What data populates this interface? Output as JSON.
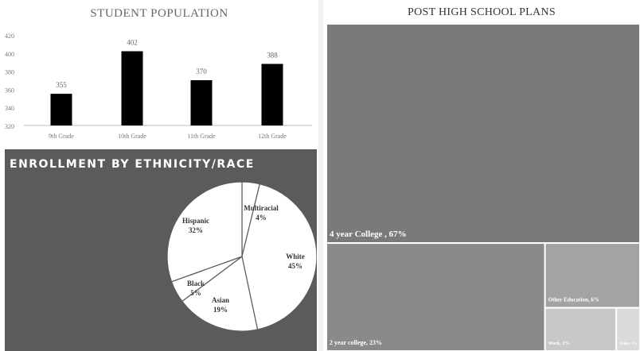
{
  "chart_data": [
    {
      "type": "bar",
      "title": "STUDENT POPULATION",
      "categories": [
        "9th Grade",
        "10th Grade",
        "11th Grade",
        "12th Grade"
      ],
      "values": [
        355,
        402,
        370,
        388
      ],
      "data_labels": [
        "355",
        "402",
        "370",
        "388"
      ],
      "y_tick_labels": [
        "320",
        "340",
        "360",
        "380",
        "400",
        "420"
      ],
      "ylim": [
        320,
        420
      ],
      "grid": false,
      "bar_color": "#000000"
    },
    {
      "type": "pie",
      "title": "ENROLLMENT BY ETHNICITY/RACE",
      "slices": [
        {
          "label": "Multiracial",
          "pct_label": "4%",
          "value": 4
        },
        {
          "label": "White",
          "pct_label": "45%",
          "value": 45
        },
        {
          "label": "Asian",
          "pct_label": "19%",
          "value": 19
        },
        {
          "label": "Black",
          "pct_label": "5%",
          "value": 5
        },
        {
          "label": "Hispanic",
          "pct_label": "32%",
          "value": 32
        }
      ],
      "background": "#5b5b5b",
      "slice_color": "#ffffff"
    },
    {
      "type": "treemap",
      "title": "POST HIGH SCHOOL PLANS",
      "items": [
        {
          "label": "4 year College , 67%",
          "value": 67,
          "color": "#7a7a7a"
        },
        {
          "label": "2 year college, 23%",
          "value": 23,
          "color": "#8a8a8a"
        },
        {
          "label": "Other Education, 6%",
          "value": 6,
          "color": "#a3a3a3"
        },
        {
          "label": "Work, 3%",
          "value": 3,
          "color": "#c8c8c8"
        },
        {
          "label": "Other, 1%",
          "value": 1,
          "color": "#dadada"
        }
      ]
    }
  ]
}
